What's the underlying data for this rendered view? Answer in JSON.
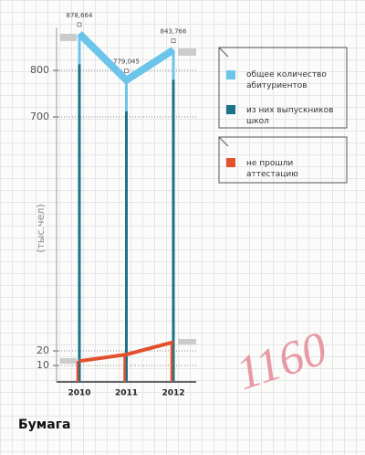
{
  "chart_data": {
    "type": "line",
    "y_label": "(тыс.чел)",
    "categories": [
      "2010",
      "2011",
      "2012"
    ],
    "series": [
      {
        "name": "общее количество абитуриентов",
        "color": "#6cc5e9",
        "values": [
          878.664,
          779.045,
          843.766
        ],
        "value_labels": [
          "878,664",
          "779,045",
          "843,766"
        ]
      },
      {
        "name": "из них выпускников школ",
        "color": "#1b7389",
        "values": [
          813,
          712,
          780
        ],
        "connect": false
      },
      {
        "name": "не прошли аттестацию",
        "color": "#e2502c",
        "values": [
          13,
          17.5,
          26
        ]
      }
    ],
    "ylim": [
      0,
      900
    ],
    "yticks": [
      10,
      20,
      700,
      800
    ],
    "axis_break": [
      40,
      600
    ],
    "grid": true,
    "annotation": "1160"
  },
  "brand": "Бумага"
}
